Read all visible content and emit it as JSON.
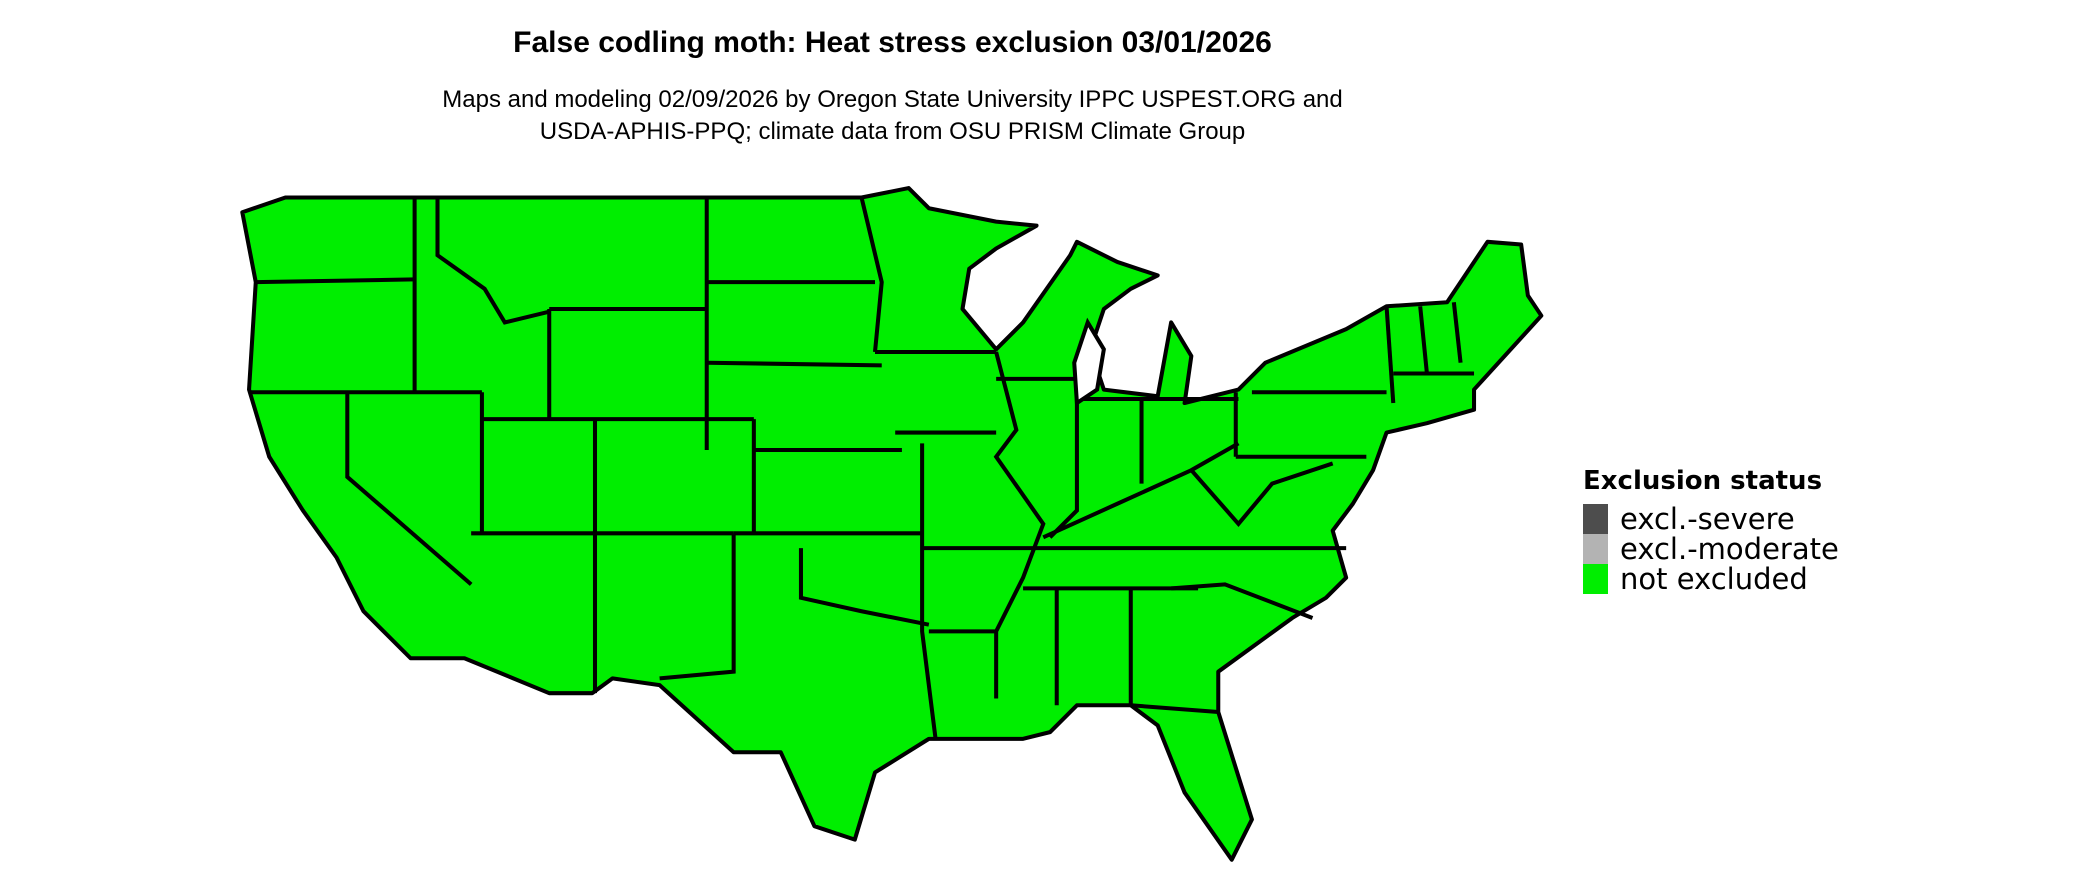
{
  "title": "False codling moth: Heat stress exclusion 03/01/2026",
  "subtitle_line1": "Maps and modeling 02/09/2026 by Oregon State University IPPC USPEST.ORG and",
  "subtitle_line2": "USDA-APHIS-PPQ; climate data from OSU PRISM Climate Group",
  "map": {
    "region": "Contiguous United States",
    "fill_color": "#00ee00",
    "border_color": "#000000",
    "status_shown": "not excluded"
  },
  "legend": {
    "title": "Exclusion status",
    "items": [
      {
        "label": "excl.-severe",
        "color": "#4d4d4d"
      },
      {
        "label": "excl.-moderate",
        "color": "#b3b3b3"
      },
      {
        "label": "not excluded",
        "color": "#00ee00"
      }
    ]
  }
}
